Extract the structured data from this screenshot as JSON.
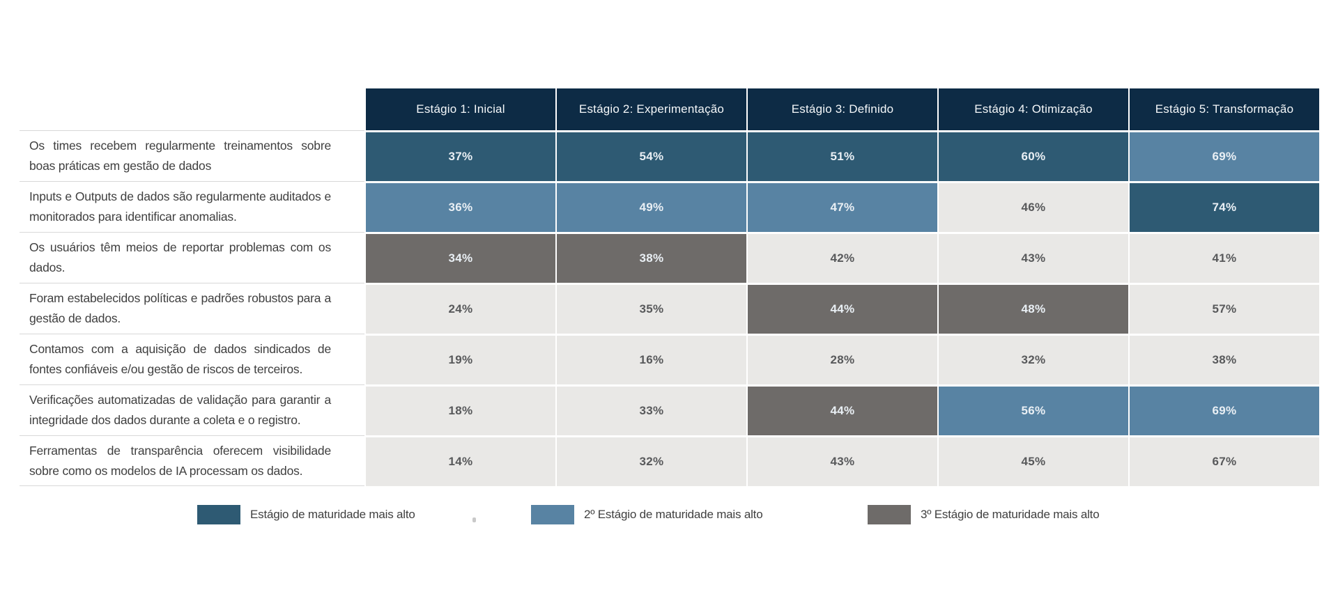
{
  "colors": {
    "header-bg": "#0d2b45",
    "tier1": "#2e5a73",
    "tier2": "#5883a3",
    "tier3": "#6e6b69",
    "tier0": "#e9e8e6",
    "label-text": "#3f3f3f",
    "value-dark": "#58595b",
    "value-light": "#e9eff4",
    "separator": "#d8d8d8"
  },
  "chart_data": {
    "type": "heatmap",
    "unit": "%",
    "columns": [
      "Estágio 1: Inicial",
      "Estágio 2: Experimentação",
      "Estágio 3: Definido",
      "Estágio 4: Otimização",
      "Estágio 5: Transformação"
    ],
    "rows": [
      {
        "label": "Os times recebem regularmente treinamentos sobre boas práticas em gestão de dados",
        "values": [
          37,
          54,
          51,
          60,
          69
        ],
        "tiers": [
          1,
          1,
          1,
          1,
          2
        ]
      },
      {
        "label": "Inputs e Outputs de dados são regularmente auditados e monitorados para identificar anomalias.",
        "values": [
          36,
          49,
          47,
          46,
          74
        ],
        "tiers": [
          2,
          2,
          2,
          0,
          1
        ]
      },
      {
        "label": "Os usuários têm meios de reportar problemas com os dados.",
        "values": [
          34,
          38,
          42,
          43,
          41
        ],
        "tiers": [
          3,
          3,
          0,
          0,
          0
        ]
      },
      {
        "label": "Foram estabelecidos políticas e padrões robustos para a gestão de dados.",
        "values": [
          24,
          35,
          44,
          48,
          57
        ],
        "tiers": [
          0,
          0,
          3,
          3,
          0
        ]
      },
      {
        "label": "Contamos com a aquisição de dados sindicados de fontes confiáveis e/ou gestão de riscos de terceiros.",
        "values": [
          19,
          16,
          28,
          32,
          38
        ],
        "tiers": [
          0,
          0,
          0,
          0,
          0
        ]
      },
      {
        "label": "Verificações automatizadas de validação para garantir a integridade dos dados durante a coleta e o registro.",
        "values": [
          18,
          33,
          44,
          56,
          69
        ],
        "tiers": [
          0,
          0,
          3,
          2,
          2
        ]
      },
      {
        "label": "Ferramentas de transparência oferecem visibilidade sobre como os modelos de IA processam os dados.",
        "values": [
          14,
          32,
          43,
          45,
          67
        ],
        "tiers": [
          0,
          0,
          0,
          0,
          0
        ]
      }
    ],
    "legend": [
      {
        "label": "Estágio de maturidade mais alto",
        "tier": 1
      },
      {
        "label": "2º Estágio de maturidade mais alto",
        "tier": 2
      },
      {
        "label": "3º Estágio de maturidade mais alto",
        "tier": 3
      }
    ]
  }
}
